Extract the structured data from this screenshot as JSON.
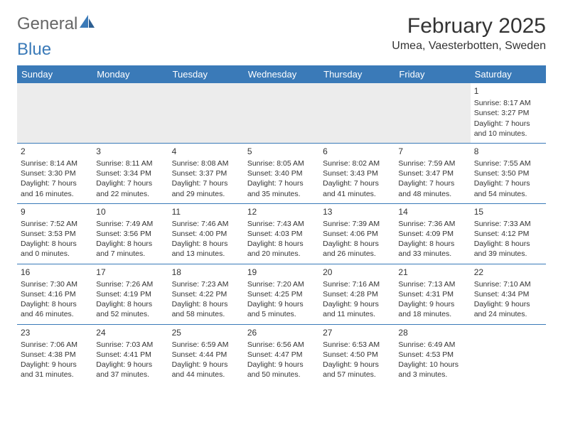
{
  "logo": {
    "word1": "General",
    "word2": "Blue"
  },
  "title": "February 2025",
  "location": "Umea, Vaesterbotten, Sweden",
  "colors": {
    "header_bg": "#3a7ab8",
    "header_text": "#ffffff",
    "page_bg": "#ffffff",
    "text": "#333333",
    "logo_gray": "#666666",
    "logo_blue": "#3a7ab8",
    "row_divider": "#3a7ab8",
    "empty_shade": "#ececec"
  },
  "day_names": [
    "Sunday",
    "Monday",
    "Tuesday",
    "Wednesday",
    "Thursday",
    "Friday",
    "Saturday"
  ],
  "weeks": [
    [
      {
        "blank": true,
        "shade": true
      },
      {
        "blank": true,
        "shade": true
      },
      {
        "blank": true,
        "shade": true
      },
      {
        "blank": true,
        "shade": true
      },
      {
        "blank": true,
        "shade": true
      },
      {
        "blank": true,
        "shade": true
      },
      {
        "n": "1",
        "sr": "Sunrise: 8:17 AM",
        "ss": "Sunset: 3:27 PM",
        "d1": "Daylight: 7 hours",
        "d2": "and 10 minutes."
      }
    ],
    [
      {
        "n": "2",
        "sr": "Sunrise: 8:14 AM",
        "ss": "Sunset: 3:30 PM",
        "d1": "Daylight: 7 hours",
        "d2": "and 16 minutes."
      },
      {
        "n": "3",
        "sr": "Sunrise: 8:11 AM",
        "ss": "Sunset: 3:34 PM",
        "d1": "Daylight: 7 hours",
        "d2": "and 22 minutes."
      },
      {
        "n": "4",
        "sr": "Sunrise: 8:08 AM",
        "ss": "Sunset: 3:37 PM",
        "d1": "Daylight: 7 hours",
        "d2": "and 29 minutes."
      },
      {
        "n": "5",
        "sr": "Sunrise: 8:05 AM",
        "ss": "Sunset: 3:40 PM",
        "d1": "Daylight: 7 hours",
        "d2": "and 35 minutes."
      },
      {
        "n": "6",
        "sr": "Sunrise: 8:02 AM",
        "ss": "Sunset: 3:43 PM",
        "d1": "Daylight: 7 hours",
        "d2": "and 41 minutes."
      },
      {
        "n": "7",
        "sr": "Sunrise: 7:59 AM",
        "ss": "Sunset: 3:47 PM",
        "d1": "Daylight: 7 hours",
        "d2": "and 48 minutes."
      },
      {
        "n": "8",
        "sr": "Sunrise: 7:55 AM",
        "ss": "Sunset: 3:50 PM",
        "d1": "Daylight: 7 hours",
        "d2": "and 54 minutes."
      }
    ],
    [
      {
        "n": "9",
        "sr": "Sunrise: 7:52 AM",
        "ss": "Sunset: 3:53 PM",
        "d1": "Daylight: 8 hours",
        "d2": "and 0 minutes."
      },
      {
        "n": "10",
        "sr": "Sunrise: 7:49 AM",
        "ss": "Sunset: 3:56 PM",
        "d1": "Daylight: 8 hours",
        "d2": "and 7 minutes."
      },
      {
        "n": "11",
        "sr": "Sunrise: 7:46 AM",
        "ss": "Sunset: 4:00 PM",
        "d1": "Daylight: 8 hours",
        "d2": "and 13 minutes."
      },
      {
        "n": "12",
        "sr": "Sunrise: 7:43 AM",
        "ss": "Sunset: 4:03 PM",
        "d1": "Daylight: 8 hours",
        "d2": "and 20 minutes."
      },
      {
        "n": "13",
        "sr": "Sunrise: 7:39 AM",
        "ss": "Sunset: 4:06 PM",
        "d1": "Daylight: 8 hours",
        "d2": "and 26 minutes."
      },
      {
        "n": "14",
        "sr": "Sunrise: 7:36 AM",
        "ss": "Sunset: 4:09 PM",
        "d1": "Daylight: 8 hours",
        "d2": "and 33 minutes."
      },
      {
        "n": "15",
        "sr": "Sunrise: 7:33 AM",
        "ss": "Sunset: 4:12 PM",
        "d1": "Daylight: 8 hours",
        "d2": "and 39 minutes."
      }
    ],
    [
      {
        "n": "16",
        "sr": "Sunrise: 7:30 AM",
        "ss": "Sunset: 4:16 PM",
        "d1": "Daylight: 8 hours",
        "d2": "and 46 minutes."
      },
      {
        "n": "17",
        "sr": "Sunrise: 7:26 AM",
        "ss": "Sunset: 4:19 PM",
        "d1": "Daylight: 8 hours",
        "d2": "and 52 minutes."
      },
      {
        "n": "18",
        "sr": "Sunrise: 7:23 AM",
        "ss": "Sunset: 4:22 PM",
        "d1": "Daylight: 8 hours",
        "d2": "and 58 minutes."
      },
      {
        "n": "19",
        "sr": "Sunrise: 7:20 AM",
        "ss": "Sunset: 4:25 PM",
        "d1": "Daylight: 9 hours",
        "d2": "and 5 minutes."
      },
      {
        "n": "20",
        "sr": "Sunrise: 7:16 AM",
        "ss": "Sunset: 4:28 PM",
        "d1": "Daylight: 9 hours",
        "d2": "and 11 minutes."
      },
      {
        "n": "21",
        "sr": "Sunrise: 7:13 AM",
        "ss": "Sunset: 4:31 PM",
        "d1": "Daylight: 9 hours",
        "d2": "and 18 minutes."
      },
      {
        "n": "22",
        "sr": "Sunrise: 7:10 AM",
        "ss": "Sunset: 4:34 PM",
        "d1": "Daylight: 9 hours",
        "d2": "and 24 minutes."
      }
    ],
    [
      {
        "n": "23",
        "sr": "Sunrise: 7:06 AM",
        "ss": "Sunset: 4:38 PM",
        "d1": "Daylight: 9 hours",
        "d2": "and 31 minutes."
      },
      {
        "n": "24",
        "sr": "Sunrise: 7:03 AM",
        "ss": "Sunset: 4:41 PM",
        "d1": "Daylight: 9 hours",
        "d2": "and 37 minutes."
      },
      {
        "n": "25",
        "sr": "Sunrise: 6:59 AM",
        "ss": "Sunset: 4:44 PM",
        "d1": "Daylight: 9 hours",
        "d2": "and 44 minutes."
      },
      {
        "n": "26",
        "sr": "Sunrise: 6:56 AM",
        "ss": "Sunset: 4:47 PM",
        "d1": "Daylight: 9 hours",
        "d2": "and 50 minutes."
      },
      {
        "n": "27",
        "sr": "Sunrise: 6:53 AM",
        "ss": "Sunset: 4:50 PM",
        "d1": "Daylight: 9 hours",
        "d2": "and 57 minutes."
      },
      {
        "n": "28",
        "sr": "Sunrise: 6:49 AM",
        "ss": "Sunset: 4:53 PM",
        "d1": "Daylight: 10 hours",
        "d2": "and 3 minutes."
      },
      {
        "blank": true,
        "shade": false
      }
    ]
  ]
}
